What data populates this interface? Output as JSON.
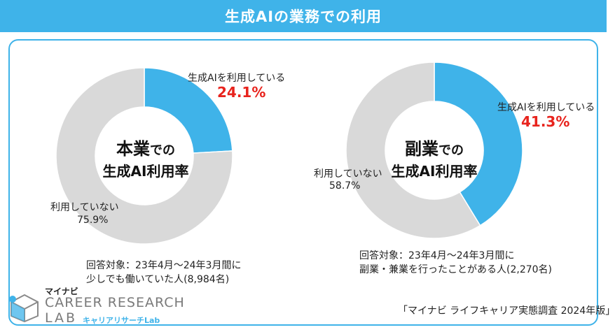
{
  "header": {
    "title": "生成AIの業務での利用"
  },
  "colors": {
    "accent": "#3fb3e9",
    "not_using": "#d9d9d9",
    "highlight_red": "#e8231d"
  },
  "chart_data": [
    {
      "type": "pie",
      "center_title_big": "本業",
      "center_title_small": "での",
      "center_title_line2": "生成AI利用率",
      "categories": [
        "生成AIを利用している",
        "利用していない"
      ],
      "values": [
        24.1,
        75.9
      ],
      "value_labels": [
        "24.1%",
        "75.9%"
      ],
      "note_lines": [
        "回答対象：23年4月～24年3月間に",
        "少しでも働いていた人(8,984名)"
      ]
    },
    {
      "type": "pie",
      "center_title_big": "副業",
      "center_title_small": "での",
      "center_title_line2": "生成AI利用率",
      "categories": [
        "生成AIを利用している",
        "利用していない"
      ],
      "values": [
        41.3,
        58.7
      ],
      "value_labels": [
        "41.3%",
        "58.7%"
      ],
      "note_lines": [
        "回答対象：23年4月～24年3月間に",
        "副業・兼業を行ったことがある人(2,270名)"
      ]
    }
  ],
  "logo": {
    "brand": "マイナビ",
    "line1": "CAREER RESEARCH",
    "line2": "LAB",
    "sub": "キャリアリサーチLab"
  },
  "source": "「マイナビ ライフキャリア実態調査  2024年版」"
}
